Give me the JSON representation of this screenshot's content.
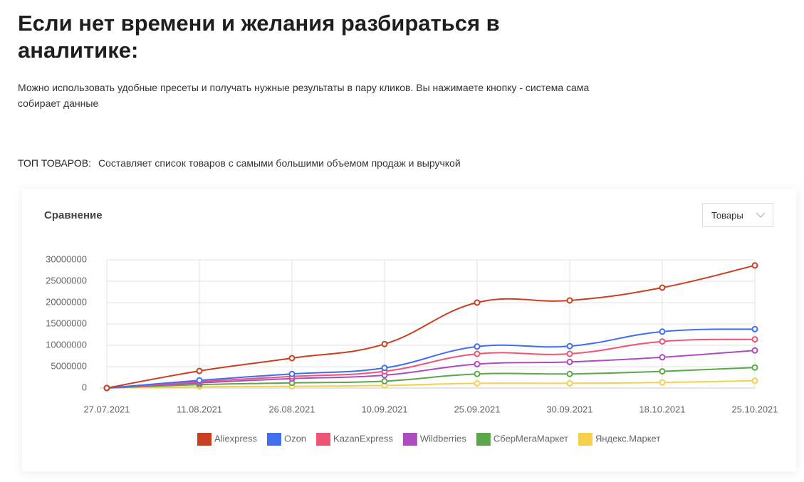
{
  "header": {
    "title": "Если нет времени и желания разбираться в аналитике:",
    "description": "Можно использовать удобные пресеты и получать нужные результаты в пару кликов. Вы нажимаете кнопку - система сама собирает данные",
    "section_label": "ТОП ТОВАРОВ:",
    "section_text": "Составляет список товаров с самыми большими объемом продаж и выручкой"
  },
  "card": {
    "title": "Сравнение",
    "dropdown": "Товары"
  },
  "chart_data": {
    "type": "line",
    "categories": [
      "27.07.2021",
      "11.08.2021",
      "26.08.2021",
      "10.09.2021",
      "25.09.2021",
      "30.09.2021",
      "18.10.2021",
      "25.10.2021"
    ],
    "series": [
      {
        "name": "Aliexpress",
        "color": "#c8401f",
        "values": [
          0,
          4000000,
          7000000,
          10300000,
          20000000,
          20500000,
          23500000,
          28700000
        ]
      },
      {
        "name": "Ozon",
        "color": "#3f6ff0",
        "values": [
          0,
          1800000,
          3300000,
          4700000,
          9700000,
          9800000,
          13200000,
          13800000
        ]
      },
      {
        "name": "KazanExpress",
        "color": "#ef5474",
        "values": [
          0,
          1500000,
          2700000,
          3900000,
          8000000,
          8000000,
          10900000,
          11400000
        ]
      },
      {
        "name": "Wildberries",
        "color": "#ad4cbf",
        "values": [
          0,
          1200000,
          2200000,
          3000000,
          5600000,
          6100000,
          7200000,
          8800000
        ]
      },
      {
        "name": "СберМегаМаркет",
        "color": "#5aa84a",
        "values": [
          0,
          800000,
          1200000,
          1600000,
          3300000,
          3300000,
          3900000,
          4800000
        ]
      },
      {
        "name": "Яндекс.Маркет",
        "color": "#f6d04d",
        "values": [
          0,
          300000,
          400000,
          600000,
          1100000,
          1100000,
          1300000,
          1700000
        ]
      }
    ],
    "ylim": [
      0,
      30000000
    ],
    "yticks": [
      0,
      5000000,
      10000000,
      15000000,
      20000000,
      25000000,
      30000000
    ],
    "grid": true
  }
}
